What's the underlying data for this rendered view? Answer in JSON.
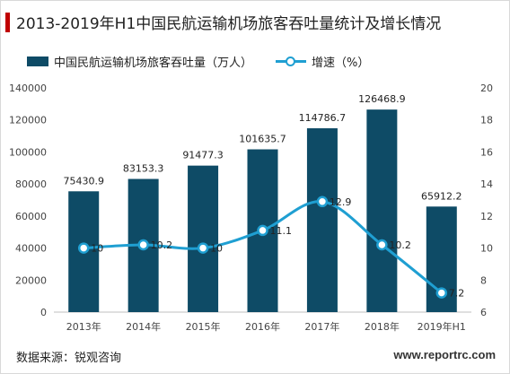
{
  "title": "2013-2019年H1中国民航运输机场旅客吞吐量统计及增长情况",
  "legend": {
    "bar_label": "中国民航运输机场旅客吞吐量（万人）",
    "line_label": "增速（%）"
  },
  "source": "数据来源：锐观咨询",
  "website": "www.reportrc.com",
  "colors": {
    "bar": "#0e4b66",
    "line": "#1f9fd2",
    "title_accent": "#c00000"
  },
  "chart_data": {
    "type": "bar",
    "title": "2013-2019年H1中国民航运输机场旅客吞吐量统计及增长情况",
    "categories": [
      "2013年",
      "2014年",
      "2015年",
      "2016年",
      "2017年",
      "2018年",
      "2019年H1"
    ],
    "series": [
      {
        "name": "中国民航运输机场旅客吞吐量（万人）",
        "type": "bar",
        "axis": "left",
        "values": [
          75430.9,
          83153.3,
          91477.3,
          101635.7,
          114786.7,
          126468.9,
          65912.2
        ],
        "labels": [
          "75430.9",
          "83153.3",
          "91477.3",
          "101635.7",
          "114786.7",
          "126468.9",
          "65912.2"
        ]
      },
      {
        "name": "增速（%）",
        "type": "line",
        "axis": "right",
        "values": [
          10,
          10.2,
          10,
          11.1,
          12.9,
          10.2,
          7.2
        ],
        "labels": [
          "10",
          "10.2",
          "10",
          "11.1",
          "12.9",
          "10.2",
          "7.2"
        ]
      }
    ],
    "y_left": {
      "ylim": [
        0,
        140000
      ],
      "ticks": [
        "0",
        "20000",
        "40000",
        "60000",
        "80000",
        "100000",
        "120000",
        "140000"
      ]
    },
    "y_right": {
      "ylim": [
        6,
        20
      ],
      "ticks": [
        "6",
        "8",
        "10",
        "12",
        "14",
        "16",
        "18",
        "20"
      ]
    },
    "grid": false,
    "legend_position": "top-left"
  }
}
